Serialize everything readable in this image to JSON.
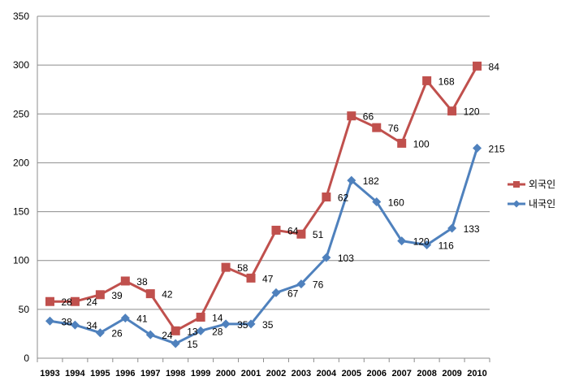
{
  "chart_data": {
    "type": "line",
    "title": "",
    "xlabel": "",
    "ylabel": "",
    "ylim": [
      0,
      350
    ],
    "yticks": [
      0,
      50,
      100,
      150,
      200,
      250,
      300,
      350
    ],
    "grid": true,
    "legend_position": "right",
    "x": [
      "1993",
      "1994",
      "1995",
      "1996",
      "1997",
      "1998",
      "1999",
      "2000",
      "2001",
      "2002",
      "2003",
      "2004",
      "2005",
      "2006",
      "2007",
      "2008",
      "2009",
      "2010"
    ],
    "series": [
      {
        "name": "외국인",
        "color": "#c0504d",
        "marker": "square",
        "values": [
          58,
          58,
          65,
          79,
          66,
          28,
          42,
          93,
          82,
          131,
          127,
          165,
          248,
          236,
          220,
          284,
          253,
          299
        ],
        "labels": [
          "28",
          "24",
          "39",
          "38",
          "42",
          "13",
          "14",
          "58",
          "47",
          "64",
          "51",
          "62",
          "66",
          "76",
          "100",
          "168",
          "120",
          "84"
        ]
      },
      {
        "name": "내국인",
        "color": "#4f81bd",
        "marker": "diamond",
        "values": [
          38,
          34,
          26,
          41,
          24,
          15,
          28,
          35,
          35,
          67,
          76,
          103,
          182,
          160,
          120,
          116,
          133,
          215
        ],
        "labels": [
          "38",
          "34",
          "26",
          "41",
          "24",
          "15",
          "28",
          "35",
          "35",
          "67",
          "76",
          "103",
          "182",
          "160",
          "120",
          "116",
          "133",
          "215"
        ]
      }
    ]
  }
}
